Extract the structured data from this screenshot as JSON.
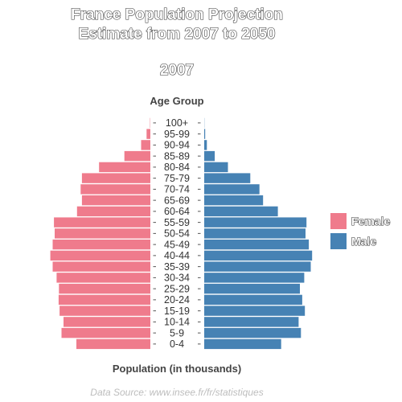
{
  "chart_data": {
    "type": "bar",
    "title_lines": [
      "France Population Projection",
      "Estimate from 2007 to 2050"
    ],
    "year": "2007",
    "y_axis_title": "Age Group",
    "x_axis_title": "Population (in thousands)",
    "source": "Data Source: www.insee.fr/fr/statistiques",
    "categories": [
      "100+",
      "95-99",
      "90-94",
      "85-89",
      "80-84",
      "75-79",
      "70-74",
      "65-69",
      "60-64",
      "55-59",
      "50-54",
      "45-49",
      "40-44",
      "35-39",
      "30-34",
      "25-29",
      "20-24",
      "15-19",
      "10-14",
      "5-9",
      "0-4"
    ],
    "series": [
      {
        "name": "Female",
        "color": "#EF7B8C",
        "side": "left",
        "values": [
          5,
          57,
          140,
          395,
          780,
          1040,
          1060,
          1040,
          1115,
          1465,
          1455,
          1485,
          1520,
          1485,
          1425,
          1390,
          1395,
          1380,
          1320,
          1350,
          1125
        ]
      },
      {
        "name": "Male",
        "color": "#4682B4",
        "side": "right",
        "values": [
          2,
          15,
          40,
          160,
          360,
          700,
          840,
          895,
          1120,
          1555,
          1540,
          1590,
          1640,
          1620,
          1520,
          1455,
          1490,
          1530,
          1435,
          1470,
          1170
        ]
      }
    ],
    "value_max": 1650,
    "grid": false,
    "legend_position": "right"
  }
}
